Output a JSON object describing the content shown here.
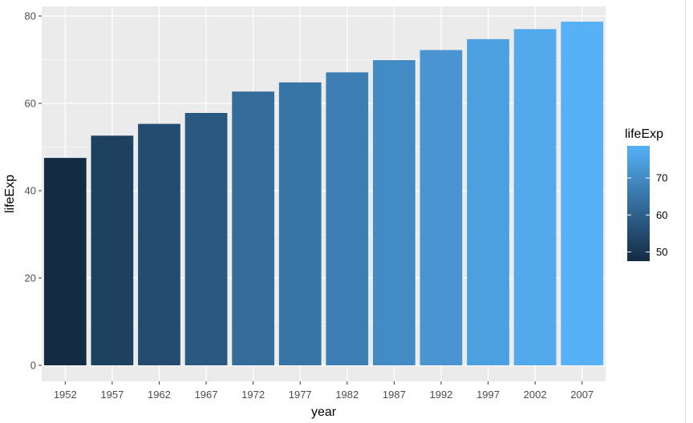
{
  "chart_data": {
    "type": "bar",
    "xlabel": "year",
    "ylabel": "lifeExp",
    "categories": [
      "1952",
      "1957",
      "1962",
      "1967",
      "1972",
      "1977",
      "1982",
      "1987",
      "1992",
      "1997",
      "2002",
      "2007"
    ],
    "values": [
      47.5,
      52.6,
      55.3,
      57.8,
      62.7,
      64.8,
      67.1,
      69.9,
      72.2,
      74.7,
      77.0,
      78.7
    ],
    "ylim": [
      0,
      82
    ],
    "yticks": [
      0,
      20,
      40,
      60,
      80
    ],
    "grid": true,
    "panel_background": "#ebebeb",
    "grid_color": "#ffffff",
    "legend": {
      "title": "lifeExp",
      "position": "right",
      "range": [
        47.5,
        78.7
      ],
      "ticks": [
        50,
        60,
        70
      ],
      "low_color": "#132b43",
      "high_color": "#56b1f7"
    }
  }
}
